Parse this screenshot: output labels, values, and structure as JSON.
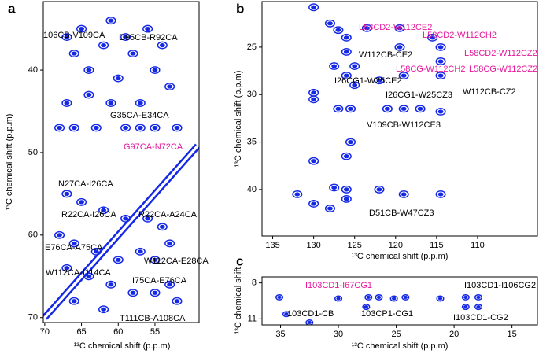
{
  "chart_data": [
    {
      "type": "contour",
      "panel_label": "a",
      "xlabel": "¹³C chemical shift (p.p.m)",
      "ylabel": "¹³C chemical shift (p.p.m)",
      "xlim": [
        70.2,
        49
      ],
      "ylim": [
        31.7,
        70.6
      ],
      "xticks": [
        70,
        65,
        60,
        55
      ],
      "yticks": [
        40,
        50,
        60,
        70
      ],
      "color": "#1428e6",
      "diagonal": true,
      "peaks": {
        "x": [
          67,
          66,
          65,
          64,
          62,
          61,
          60,
          59,
          58,
          56,
          55,
          54,
          53,
          67,
          64,
          57,
          61,
          68,
          66,
          63,
          59,
          57,
          55,
          52,
          67,
          65,
          62,
          59,
          56,
          54,
          68,
          66,
          63,
          60,
          57,
          55,
          53,
          67,
          64,
          61,
          58,
          55,
          53,
          66,
          62,
          52
        ],
        "y": [
          36,
          38,
          35,
          40,
          37,
          34,
          41,
          36,
          38,
          35,
          40,
          37,
          42,
          44,
          43,
          44,
          44,
          47,
          47,
          47,
          47,
          47,
          47,
          47,
          55,
          56,
          57,
          58,
          58,
          59,
          60,
          61,
          62,
          63,
          62,
          63,
          61,
          64,
          65,
          66,
          67,
          67,
          66,
          68,
          69,
          68
        ]
      },
      "annotations": [
        {
          "text": "I106CB-V109CA",
          "color": "#000000"
        },
        {
          "text": "D95CB-R92CA",
          "color": "#000000"
        },
        {
          "text": "G35CA-E34CA",
          "color": "#000000"
        },
        {
          "text": "G97CA-N72CA",
          "color": "#e6199c"
        },
        {
          "text": "N27CA-I26CA",
          "color": "#000000"
        },
        {
          "text": "R22CA-I26CA",
          "color": "#000000"
        },
        {
          "text": "R22CA-A24CA",
          "color": "#000000"
        },
        {
          "text": "E76CA-A75CA",
          "color": "#000000"
        },
        {
          "text": "W112CA-E28CA",
          "color": "#000000"
        },
        {
          "text": "W112CA-I114CA",
          "color": "#000000"
        },
        {
          "text": "I75CA-E76CA",
          "color": "#000000"
        },
        {
          "text": "T111CB-A108CA",
          "color": "#000000"
        }
      ]
    },
    {
      "type": "contour",
      "panel_label": "b",
      "xlabel": "¹³C chemical shift (p.p.m)",
      "ylabel": "¹³C chemical shift (p.p.m)",
      "xlim": [
        136.3,
        102.7
      ],
      "ylim": [
        20.2,
        44.9
      ],
      "xticks": [
        135,
        130,
        125,
        120,
        115,
        110
      ],
      "yticks": [
        25,
        30,
        35,
        40
      ],
      "color": "#1428e6",
      "diagonal": false,
      "peaks": {
        "x": [
          125,
          126,
          127.5,
          126,
          119.5,
          114.5,
          114.5,
          114.5,
          119,
          122,
          130,
          125,
          127,
          125.5,
          121,
          119,
          117,
          114.5,
          130,
          130,
          126,
          126,
          126,
          127.5,
          128,
          122,
          119,
          114.5,
          130,
          132,
          125.5,
          128,
          127,
          126,
          130,
          123.5,
          119.5,
          115.5
        ],
        "y": [
          27,
          28,
          27,
          25.5,
          25,
          25,
          26.5,
          28,
          28,
          28.5,
          29.8,
          29,
          31.5,
          31.5,
          31.5,
          31.5,
          31.5,
          31.8,
          30.5,
          37,
          36.5,
          40,
          41,
          39.8,
          42,
          40,
          40.5,
          40.5,
          41.5,
          40.5,
          35,
          22.5,
          23.2,
          24,
          20.8,
          23,
          23,
          24
        ]
      },
      "annotations": [
        {
          "text": "L58CD2-W112CE2",
          "color": "#e6199c"
        },
        {
          "text": "L58CD2-W112CH2",
          "color": "#e6199c"
        },
        {
          "text": "W112CB-CE2",
          "color": "#000000"
        },
        {
          "text": "L58CD2-W112CZ2",
          "color": "#e6199c"
        },
        {
          "text": "L58CG-W112CH2",
          "color": "#e6199c"
        },
        {
          "text": "L58CG-W112CZ2",
          "color": "#e6199c"
        },
        {
          "text": "I26CG1-W25CE2",
          "color": "#000000"
        },
        {
          "text": "I26CG1-W25CZ3",
          "color": "#000000"
        },
        {
          "text": "W112CB-CZ2",
          "color": "#000000"
        },
        {
          "text": "V109CB-W112CE3",
          "color": "#000000"
        },
        {
          "text": "D51CB-W47CZ3",
          "color": "#000000"
        }
      ]
    },
    {
      "type": "contour",
      "panel_label": "c",
      "xlabel": "¹³C chemical shift (p.p.m)",
      "ylabel": "¹³C chemical shift",
      "xlim": [
        36.6,
        12.8
      ],
      "ylim": [
        7.5,
        11.5
      ],
      "xticks": [
        35,
        30,
        25,
        20,
        15
      ],
      "yticks": [
        8,
        11
      ],
      "color": "#1428e6",
      "diagonal": false,
      "peaks": {
        "x": [
          35.1,
          34.5,
          30,
          27.4,
          26.5,
          25.2,
          24.2,
          21.2,
          19,
          17.9,
          32.5,
          27.6,
          19,
          17.9
        ],
        "y": [
          9.2,
          10.6,
          9.3,
          9.2,
          9.2,
          9.3,
          9.2,
          9.3,
          9.2,
          9.2,
          11.3,
          10,
          10,
          10
        ]
      },
      "annotations": [
        {
          "text": "I103CD1-I67CG1",
          "color": "#e6199c"
        },
        {
          "text": "I103CD1-I106CG2",
          "color": "#000000"
        },
        {
          "text": "I103CD1-CB",
          "color": "#000000"
        },
        {
          "text": "I103CP1-CG1",
          "color": "#000000"
        },
        {
          "text": "I103CD1-CG2",
          "color": "#000000"
        }
      ]
    }
  ]
}
